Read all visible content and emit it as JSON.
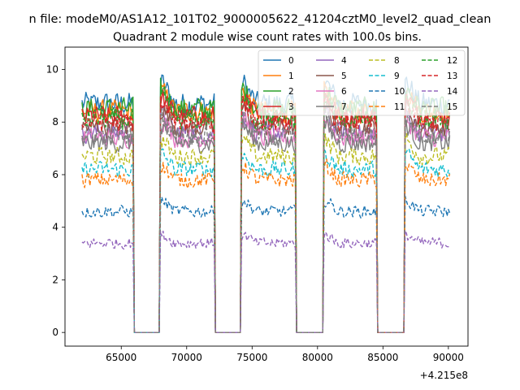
{
  "figure": {
    "suptitle": "n file: modeM0/AS1A12_101T02_9000005622_41204cztM0_level2_quad_clean",
    "offset_label": "+4.215e8"
  },
  "chart_data": {
    "type": "line",
    "title": "Quadrant 2 module wise count rates with 100.0s bins.",
    "xlabel": "",
    "ylabel": "",
    "xlim": [
      60700,
      91500
    ],
    "ylim": [
      -0.52,
      10.85
    ],
    "x_offset": 421500000,
    "x_ticks": [
      65000,
      70000,
      75000,
      80000,
      85000,
      90000
    ],
    "x_tick_labels": [
      "65000",
      "70000",
      "75000",
      "80000",
      "85000",
      "90000"
    ],
    "y_ticks": [
      0,
      2,
      4,
      6,
      8,
      10
    ],
    "y_tick_labels": [
      "0",
      "2",
      "4",
      "6",
      "8",
      "10"
    ],
    "bin_size_s": 100.0,
    "x_start": 62000,
    "x_end": 90100,
    "gaps": [
      [
        66000,
        67900
      ],
      [
        72200,
        74100
      ],
      [
        78400,
        80400
      ],
      [
        84600,
        86600
      ]
    ],
    "legend_position": "top-right",
    "series": [
      {
        "name": "0",
        "color": "#1f77b4",
        "style": "solid",
        "mean": 8.7
      },
      {
        "name": "1",
        "color": "#ff7f0e",
        "style": "solid",
        "mean": 8.4
      },
      {
        "name": "2",
        "color": "#2ca02c",
        "style": "solid",
        "mean": 8.5
      },
      {
        "name": "3",
        "color": "#d62728",
        "style": "solid",
        "mean": 8.2
      },
      {
        "name": "4",
        "color": "#9467bd",
        "style": "solid",
        "mean": 7.6
      },
      {
        "name": "5",
        "color": "#8c564b",
        "style": "solid",
        "mean": 7.8
      },
      {
        "name": "6",
        "color": "#e377c2",
        "style": "solid",
        "mean": 7.4
      },
      {
        "name": "7",
        "color": "#7f7f7f",
        "style": "solid",
        "mean": 7.2
      },
      {
        "name": "8",
        "color": "#bcbd22",
        "style": "dashed",
        "mean": 6.7
      },
      {
        "name": "9",
        "color": "#17becf",
        "style": "dashed",
        "mean": 6.2
      },
      {
        "name": "10",
        "color": "#1f77b4",
        "style": "dashed",
        "mean": 4.6
      },
      {
        "name": "11",
        "color": "#ff7f0e",
        "style": "dashed",
        "mean": 5.8
      },
      {
        "name": "12",
        "color": "#2ca02c",
        "style": "dashed",
        "mean": 8.1
      },
      {
        "name": "13",
        "color": "#d62728",
        "style": "dashed",
        "mean": 8.0
      },
      {
        "name": "14",
        "color": "#9467bd",
        "style": "dashed",
        "mean": 3.4
      },
      {
        "name": "15",
        "color": "#7f7f7f",
        "style": "dashed",
        "mean": 7.5
      }
    ]
  }
}
